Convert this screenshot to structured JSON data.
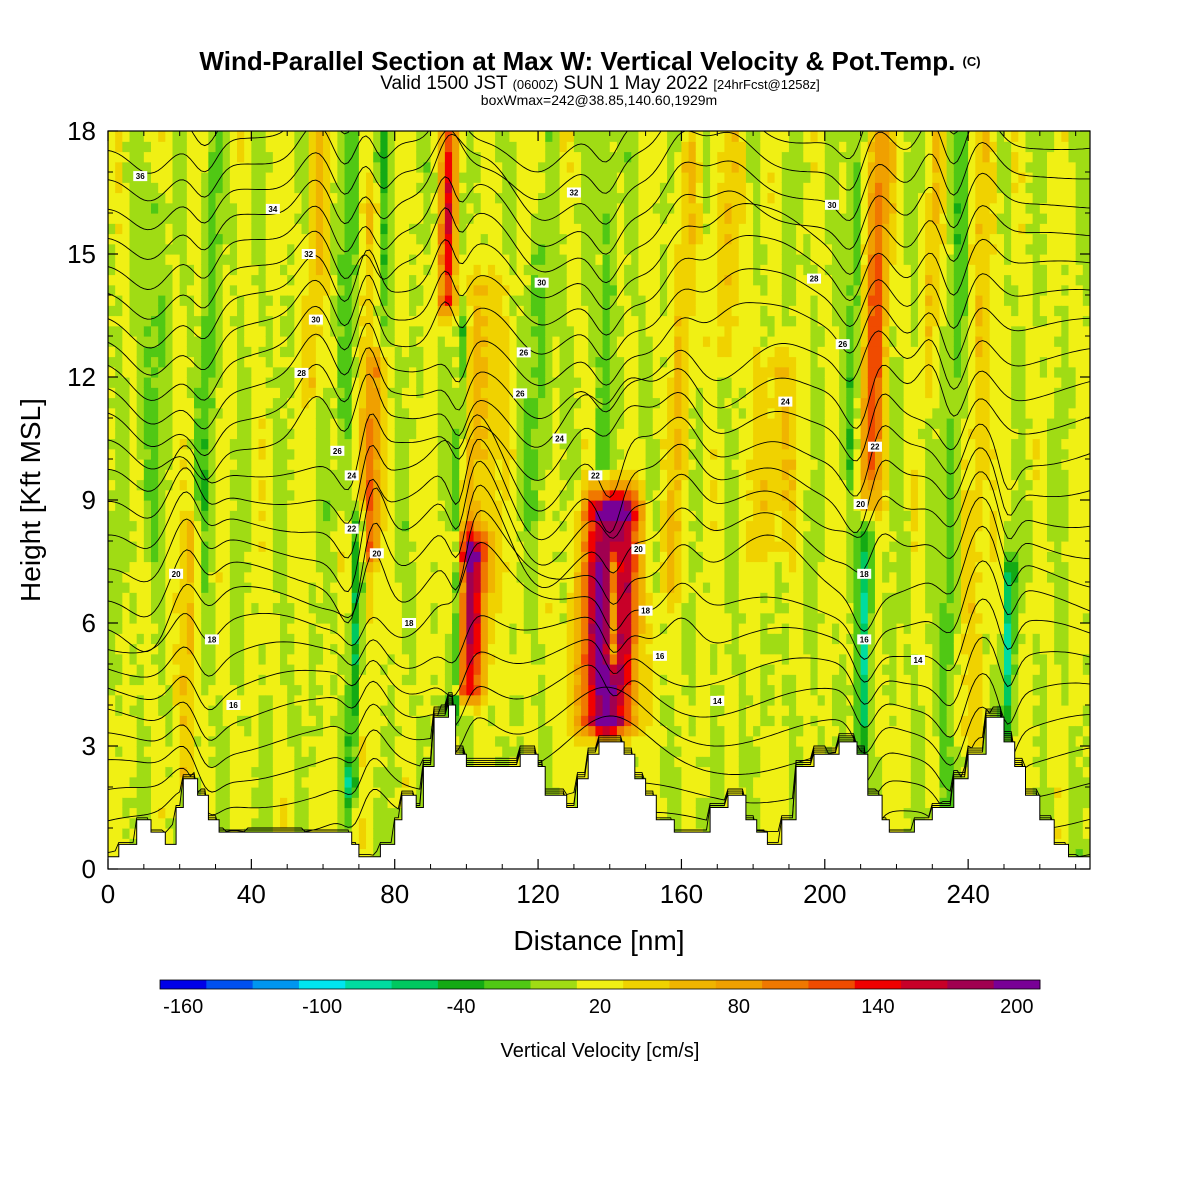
{
  "chart_data": {
    "type": "heatmap",
    "title": "Wind-Parallel Section at Max W: Vertical Velocity & Pot.Temp.",
    "title_mark": "(C)",
    "subtitle": {
      "part1": "Valid 1500 JST",
      "small1": "(0600Z)",
      "part2": "SUN 1 May 2022",
      "small2": "[24hrFcst@1258z]"
    },
    "info_line": "boxWmax=242@38.85,140.60,1929m",
    "xlabel": "Distance [nm]",
    "ylabel": "Height [Kft MSL]",
    "xlim": [
      0,
      274
    ],
    "ylim": [
      0,
      18
    ],
    "x_ticks": [
      "0",
      "40",
      "80",
      "120",
      "160",
      "200",
      "240"
    ],
    "y_ticks": [
      "0",
      "3",
      "6",
      "9",
      "12",
      "15",
      "18"
    ],
    "colorbar": {
      "label": "Vertical Velocity [cm/s]",
      "ticks": [
        "-160",
        "-100",
        "-40",
        "20",
        "80",
        "140",
        "200"
      ],
      "colors": [
        "#0000e8",
        "#0050f0",
        "#0096f0",
        "#00e6f0",
        "#00dca0",
        "#00c860",
        "#14aa14",
        "#50c814",
        "#a0dc14",
        "#f0f014",
        "#f0d200",
        "#f0b400",
        "#f0a000",
        "#f07800",
        "#f04b00",
        "#f00000",
        "#c80028",
        "#a00050",
        "#780096"
      ]
    },
    "terrain": [
      [
        0,
        0.3
      ],
      [
        3,
        0.3
      ],
      [
        3,
        0.6
      ],
      [
        8,
        0.6
      ],
      [
        8,
        1.2
      ],
      [
        12,
        1.2
      ],
      [
        12,
        0.9
      ],
      [
        16,
        0.9
      ],
      [
        16,
        0.6
      ],
      [
        19,
        0.6
      ],
      [
        19,
        1.5
      ],
      [
        21,
        1.5
      ],
      [
        21,
        2.2
      ],
      [
        25,
        2.2
      ],
      [
        25,
        1.8
      ],
      [
        28,
        1.8
      ],
      [
        28,
        1.2
      ],
      [
        31,
        1.2
      ],
      [
        31,
        0.9
      ],
      [
        68,
        0.9
      ],
      [
        68,
        0.6
      ],
      [
        70,
        0.6
      ],
      [
        70,
        0.3
      ],
      [
        76,
        0.3
      ],
      [
        76,
        0.6
      ],
      [
        80,
        0.6
      ],
      [
        80,
        1.2
      ],
      [
        82,
        1.2
      ],
      [
        82,
        1.8
      ],
      [
        86,
        1.8
      ],
      [
        86,
        1.5
      ],
      [
        88,
        1.5
      ],
      [
        88,
        2.5
      ],
      [
        91,
        2.5
      ],
      [
        91,
        3.7
      ],
      [
        95,
        3.7
      ],
      [
        95,
        4.0
      ],
      [
        97,
        4.0
      ],
      [
        97,
        2.8
      ],
      [
        100,
        2.8
      ],
      [
        100,
        2.5
      ],
      [
        115,
        2.5
      ],
      [
        115,
        2.8
      ],
      [
        120,
        2.8
      ],
      [
        120,
        2.5
      ],
      [
        122,
        2.5
      ],
      [
        122,
        1.8
      ],
      [
        128,
        1.8
      ],
      [
        128,
        1.5
      ],
      [
        131,
        1.5
      ],
      [
        131,
        2.2
      ],
      [
        134,
        2.2
      ],
      [
        134,
        2.8
      ],
      [
        137,
        2.8
      ],
      [
        137,
        3.1
      ],
      [
        144,
        3.1
      ],
      [
        144,
        2.8
      ],
      [
        147,
        2.8
      ],
      [
        147,
        2.2
      ],
      [
        150,
        2.2
      ],
      [
        150,
        1.8
      ],
      [
        153,
        1.8
      ],
      [
        153,
        1.2
      ],
      [
        158,
        1.2
      ],
      [
        158,
        0.9
      ],
      [
        168,
        0.9
      ],
      [
        168,
        1.5
      ],
      [
        173,
        1.5
      ],
      [
        173,
        1.8
      ],
      [
        178,
        1.8
      ],
      [
        178,
        1.2
      ],
      [
        181,
        1.2
      ],
      [
        181,
        0.9
      ],
      [
        184,
        0.9
      ],
      [
        184,
        0.6
      ],
      [
        188,
        0.6
      ],
      [
        188,
        1.2
      ],
      [
        192,
        1.2
      ],
      [
        192,
        2.5
      ],
      [
        197,
        2.5
      ],
      [
        197,
        2.8
      ],
      [
        204,
        2.8
      ],
      [
        204,
        3.1
      ],
      [
        209,
        3.1
      ],
      [
        209,
        2.8
      ],
      [
        212,
        2.8
      ],
      [
        212,
        1.8
      ],
      [
        216,
        1.8
      ],
      [
        216,
        1.2
      ],
      [
        218,
        1.2
      ],
      [
        218,
        0.9
      ],
      [
        225,
        0.9
      ],
      [
        225,
        1.2
      ],
      [
        230,
        1.2
      ],
      [
        230,
        1.5
      ],
      [
        236,
        1.5
      ],
      [
        236,
        2.2
      ],
      [
        240,
        2.2
      ],
      [
        240,
        2.8
      ],
      [
        245,
        2.8
      ],
      [
        245,
        3.7
      ],
      [
        250,
        3.7
      ],
      [
        250,
        3.1
      ],
      [
        253,
        3.1
      ],
      [
        253,
        2.5
      ],
      [
        256,
        2.5
      ],
      [
        256,
        1.8
      ],
      [
        260,
        1.8
      ],
      [
        260,
        1.2
      ],
      [
        264,
        1.2
      ],
      [
        264,
        0.6
      ],
      [
        268,
        0.6
      ],
      [
        268,
        0.3
      ],
      [
        274,
        0.3
      ]
    ],
    "plumes": [
      {
        "x": 140,
        "w": 9,
        "y0": 3.8,
        "y1": 8.6,
        "peak": 242
      },
      {
        "x": 101,
        "w": 6,
        "y0": 4.6,
        "y1": 7.6,
        "peak": 160
      },
      {
        "x": 95,
        "w": 3,
        "y0": 14.0,
        "y1": 18.0,
        "peak": 130
      },
      {
        "x": 214,
        "w": 4,
        "y0": 9.0,
        "y1": 18.0,
        "peak": 110
      },
      {
        "x": 74,
        "w": 3,
        "y0": 8.0,
        "y1": 12.0,
        "peak": 90
      },
      {
        "x": 23,
        "w": 4,
        "y0": 1.5,
        "y1": 8.0,
        "peak": 55
      },
      {
        "x": 72,
        "w": 4,
        "y0": 3.0,
        "y1": 16.0,
        "peak": 45
      },
      {
        "x": 104,
        "w": 8,
        "y0": 7.5,
        "y1": 14.0,
        "peak": 45
      },
      {
        "x": 186,
        "w": 8,
        "y0": 8.0,
        "y1": 12.0,
        "peak": 42
      },
      {
        "x": 160,
        "w": 4,
        "y0": 7.0,
        "y1": 17.0,
        "peak": 38
      },
      {
        "x": 243,
        "w": 4,
        "y0": 3.5,
        "y1": 18.0,
        "peak": 40
      },
      {
        "x": 58,
        "w": 4,
        "y0": 12.0,
        "y1": 18.0,
        "peak": 35
      },
      {
        "x": 230,
        "w": 3,
        "y0": 12.0,
        "y1": 18.0,
        "peak": 35
      },
      {
        "x": 173,
        "w": 6,
        "y0": 13.0,
        "y1": 18.0,
        "peak": 30
      }
    ],
    "sinks": [
      {
        "x": 69,
        "w": 2.5,
        "y0": 2.2,
        "y1": 8.2,
        "peak": -95
      },
      {
        "x": 97,
        "w": 2.5,
        "y0": 4.2,
        "y1": 6.8,
        "peak": -110
      },
      {
        "x": 98,
        "w": 2,
        "y0": 8.0,
        "y1": 13.0,
        "peak": -60
      },
      {
        "x": 141,
        "w": 2.5,
        "y0": 5.4,
        "y1": 7.2,
        "peak": -165
      },
      {
        "x": 211,
        "w": 2.5,
        "y0": 2.8,
        "y1": 8.6,
        "peak": -80
      },
      {
        "x": 251,
        "w": 2,
        "y0": 3.5,
        "y1": 7.0,
        "peak": -85
      },
      {
        "x": 27,
        "w": 3,
        "y0": 1.0,
        "y1": 18.0,
        "peak": -35
      },
      {
        "x": 67,
        "w": 3,
        "y0": 9.0,
        "y1": 18.0,
        "peak": -40
      },
      {
        "x": 76,
        "w": 2.5,
        "y0": 10.0,
        "y1": 18.0,
        "peak": -45
      },
      {
        "x": 139,
        "w": 3,
        "y0": 10.0,
        "y1": 18.0,
        "peak": -30
      },
      {
        "x": 208,
        "w": 3,
        "y0": 10.0,
        "y1": 18.0,
        "peak": -40
      },
      {
        "x": 236,
        "w": 3,
        "y0": 1.5,
        "y1": 18.0,
        "peak": -35
      },
      {
        "x": 12,
        "w": 5,
        "y0": 8.0,
        "y1": 16.0,
        "peak": -25
      },
      {
        "x": 120,
        "w": 6,
        "y0": 9.0,
        "y1": 15.0,
        "peak": -25
      }
    ],
    "contour_labels": [
      {
        "text": "36",
        "x": 9,
        "y": 16.9
      },
      {
        "text": "34",
        "x": 46,
        "y": 16.1
      },
      {
        "text": "32",
        "x": 130,
        "y": 16.5
      },
      {
        "text": "30",
        "x": 202,
        "y": 16.2
      },
      {
        "text": "32",
        "x": 56,
        "y": 15.0
      },
      {
        "text": "30",
        "x": 121,
        "y": 14.3
      },
      {
        "text": "28",
        "x": 197,
        "y": 14.4
      },
      {
        "text": "30",
        "x": 58,
        "y": 13.4
      },
      {
        "text": "26",
        "x": 116,
        "y": 12.6
      },
      {
        "text": "26",
        "x": 205,
        "y": 12.8
      },
      {
        "text": "28",
        "x": 54,
        "y": 12.1
      },
      {
        "text": "26",
        "x": 115,
        "y": 11.6
      },
      {
        "text": "24",
        "x": 189,
        "y": 11.4
      },
      {
        "text": "24",
        "x": 126,
        "y": 10.5
      },
      {
        "text": "26",
        "x": 64,
        "y": 10.2
      },
      {
        "text": "22",
        "x": 214,
        "y": 10.3
      },
      {
        "text": "24",
        "x": 68,
        "y": 9.6
      },
      {
        "text": "22",
        "x": 136,
        "y": 9.6
      },
      {
        "text": "20",
        "x": 210,
        "y": 8.9
      },
      {
        "text": "22",
        "x": 68,
        "y": 8.3
      },
      {
        "text": "20",
        "x": 148,
        "y": 7.8
      },
      {
        "text": "20",
        "x": 75,
        "y": 7.7
      },
      {
        "text": "20",
        "x": 19,
        "y": 7.2
      },
      {
        "text": "18",
        "x": 211,
        "y": 7.2
      },
      {
        "text": "18",
        "x": 150,
        "y": 6.3
      },
      {
        "text": "18",
        "x": 84,
        "y": 6.0
      },
      {
        "text": "16",
        "x": 211,
        "y": 5.6
      },
      {
        "text": "18",
        "x": 29,
        "y": 5.6
      },
      {
        "text": "16",
        "x": 154,
        "y": 5.2
      },
      {
        "text": "14",
        "x": 226,
        "y": 5.1
      },
      {
        "text": "16",
        "x": 35,
        "y": 4.0
      },
      {
        "text": "14",
        "x": 170,
        "y": 4.1
      }
    ]
  }
}
